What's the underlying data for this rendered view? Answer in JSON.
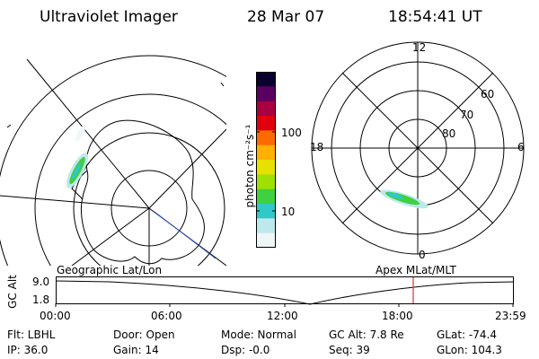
{
  "header": {
    "instrument": "Ultraviolet Imager",
    "date": "28 Mar 07",
    "time": "18:54:41 UT"
  },
  "geo_panel": {
    "caption": "Geographic Lat/Lon"
  },
  "colorbar": {
    "unit_label": "photon cm⁻²s⁻¹",
    "tick_100": "100",
    "tick_10": "10",
    "colors": [
      "#0a0030",
      "#5a0060",
      "#a80040",
      "#e00010",
      "#ff6a00",
      "#ffb000",
      "#e8e000",
      "#a0e000",
      "#40d040",
      "#30c8c8",
      "#bde8ec",
      "#eef6f8"
    ]
  },
  "mlt_panel": {
    "caption": "Apex MLat/MLT",
    "mlt_top": "12",
    "mlt_left": "18",
    "mlt_right": "6",
    "mlt_bottom": "0",
    "lat_60": "60",
    "lat_70": "70",
    "lat_80": "80"
  },
  "alt_plot": {
    "y_label": "GC Alt",
    "y_top": "9.0",
    "y_bottom": "1.8",
    "x_ticks": [
      "00:00",
      "06:00",
      "12:00",
      "18:00",
      "23:59"
    ],
    "marker_color": "#e03030"
  },
  "footer": {
    "filter": "Flt: LBHL",
    "ip": "IP: 36.0",
    "door": "Door: Open",
    "gain": "Gain: 14",
    "mode": "Mode: Normal",
    "dsp": "Dsp:    -0.0",
    "gc_alt": "GC Alt: 7.8 Re",
    "seq": "Seq: 39",
    "glat": "GLat: -74.4",
    "glon": "GLon: 104.3"
  }
}
